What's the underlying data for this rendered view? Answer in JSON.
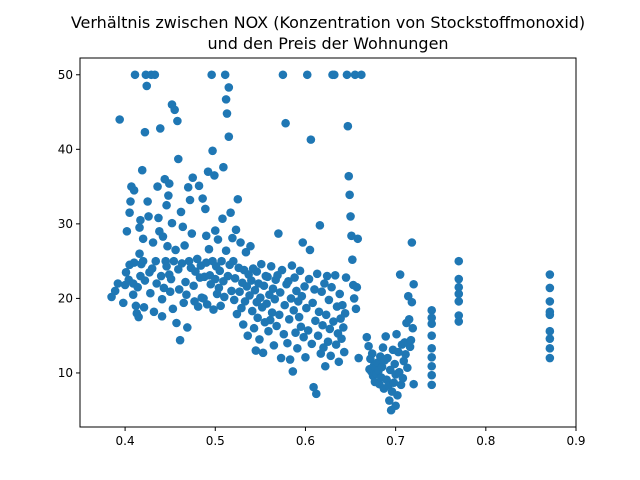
{
  "chart_data": {
    "type": "scatter",
    "title_lines": [
      "Verhältnis zwischen NOX (Konzentration von Stockstoffmonoxid)",
      "und den Preis der Wohnungen"
    ],
    "xlabel": "",
    "ylabel": "",
    "xlim": [
      0.35,
      0.9
    ],
    "ylim": [
      2.75,
      52.25
    ],
    "x_ticks": [
      0.4,
      0.5,
      0.6,
      0.7,
      0.8,
      0.9
    ],
    "x_tick_labels": [
      "0.4",
      "0.5",
      "0.6",
      "0.7",
      "0.8",
      "0.9"
    ],
    "y_ticks": [
      10,
      20,
      30,
      40,
      50
    ],
    "y_tick_labels": [
      "10",
      "20",
      "30",
      "40",
      "50"
    ],
    "grid": false,
    "marker_color": "#1f77b4",
    "points": [
      [
        0.385,
        20.2
      ],
      [
        0.389,
        21.0
      ],
      [
        0.392,
        22.0
      ],
      [
        0.394,
        44.0
      ],
      [
        0.398,
        19.4
      ],
      [
        0.4,
        21.8
      ],
      [
        0.401,
        23.5
      ],
      [
        0.402,
        29.0
      ],
      [
        0.404,
        22.5
      ],
      [
        0.405,
        31.5
      ],
      [
        0.405,
        24.5
      ],
      [
        0.406,
        33.0
      ],
      [
        0.407,
        35.0
      ],
      [
        0.409,
        22.0
      ],
      [
        0.409,
        20.5
      ],
      [
        0.41,
        34.5
      ],
      [
        0.41,
        24.8
      ],
      [
        0.411,
        50.0
      ],
      [
        0.412,
        19.0
      ],
      [
        0.413,
        18.0
      ],
      [
        0.414,
        21.5
      ],
      [
        0.415,
        17.5
      ],
      [
        0.416,
        29.5
      ],
      [
        0.416,
        26.0
      ],
      [
        0.417,
        30.5
      ],
      [
        0.417,
        23.0
      ],
      [
        0.418,
        24.6
      ],
      [
        0.419,
        37.2
      ],
      [
        0.42,
        28.0
      ],
      [
        0.42,
        25.0
      ],
      [
        0.421,
        18.8
      ],
      [
        0.422,
        42.3
      ],
      [
        0.422,
        22.4
      ],
      [
        0.423,
        50.0
      ],
      [
        0.424,
        48.5
      ],
      [
        0.425,
        33.0
      ],
      [
        0.426,
        31.0
      ],
      [
        0.427,
        23.5
      ],
      [
        0.428,
        20.7
      ],
      [
        0.429,
        50.0
      ],
      [
        0.43,
        24.0
      ],
      [
        0.431,
        27.5
      ],
      [
        0.432,
        18.2
      ],
      [
        0.433,
        50.0
      ],
      [
        0.434,
        25.0
      ],
      [
        0.435,
        22.0
      ],
      [
        0.436,
        35.0
      ],
      [
        0.437,
        30.8
      ],
      [
        0.438,
        29.0
      ],
      [
        0.439,
        42.8
      ],
      [
        0.44,
        23.0
      ],
      [
        0.441,
        19.9
      ],
      [
        0.441,
        17.6
      ],
      [
        0.442,
        28.3
      ],
      [
        0.443,
        21.4
      ],
      [
        0.444,
        36.0
      ],
      [
        0.445,
        25.0
      ],
      [
        0.446,
        32.5
      ],
      [
        0.446,
        24.3
      ],
      [
        0.447,
        27.0
      ],
      [
        0.448,
        33.8
      ],
      [
        0.449,
        35.4
      ],
      [
        0.449,
        23.2
      ],
      [
        0.45,
        20.9
      ],
      [
        0.451,
        22.6
      ],
      [
        0.452,
        46.0
      ],
      [
        0.452,
        30.1
      ],
      [
        0.453,
        18.6
      ],
      [
        0.454,
        25.0
      ],
      [
        0.455,
        45.3
      ],
      [
        0.456,
        26.5
      ],
      [
        0.457,
        16.7
      ],
      [
        0.458,
        43.8
      ],
      [
        0.459,
        38.7
      ],
      [
        0.459,
        23.9
      ],
      [
        0.46,
        21.2
      ],
      [
        0.461,
        14.4
      ],
      [
        0.462,
        31.6
      ],
      [
        0.463,
        24.7
      ],
      [
        0.464,
        29.6
      ],
      [
        0.465,
        19.4
      ],
      [
        0.466,
        27.1
      ],
      [
        0.467,
        22.2
      ],
      [
        0.468,
        20.5
      ],
      [
        0.469,
        16.1
      ],
      [
        0.47,
        34.9
      ],
      [
        0.471,
        25.0
      ],
      [
        0.472,
        33.2
      ],
      [
        0.473,
        24.1
      ],
      [
        0.474,
        28.7
      ],
      [
        0.475,
        36.2
      ],
      [
        0.476,
        21.7
      ],
      [
        0.477,
        19.6
      ],
      [
        0.478,
        23.6
      ],
      [
        0.48,
        25.3
      ],
      [
        0.481,
        18.9
      ],
      [
        0.482,
        35.1
      ],
      [
        0.483,
        22.8
      ],
      [
        0.484,
        24.4
      ],
      [
        0.485,
        20.1
      ],
      [
        0.486,
        33.4
      ],
      [
        0.487,
        20.0
      ],
      [
        0.488,
        22.9
      ],
      [
        0.489,
        32.0
      ],
      [
        0.49,
        24.8
      ],
      [
        0.49,
        28.4
      ],
      [
        0.491,
        19.2
      ],
      [
        0.492,
        37.0
      ],
      [
        0.493,
        26.6
      ],
      [
        0.494,
        23.1
      ],
      [
        0.495,
        21.9
      ],
      [
        0.496,
        50.0
      ],
      [
        0.497,
        39.8
      ],
      [
        0.497,
        25.0
      ],
      [
        0.498,
        18.5
      ],
      [
        0.499,
        36.5
      ],
      [
        0.5,
        22.6
      ],
      [
        0.5,
        29.1
      ],
      [
        0.501,
        24.3
      ],
      [
        0.502,
        20.6
      ],
      [
        0.503,
        27.9
      ],
      [
        0.504,
        21.4
      ],
      [
        0.505,
        23.7
      ],
      [
        0.506,
        19.0
      ],
      [
        0.507,
        25.0
      ],
      [
        0.508,
        30.7
      ],
      [
        0.509,
        37.6
      ],
      [
        0.509,
        22.3
      ],
      [
        0.51,
        20.2
      ],
      [
        0.511,
        50.0
      ],
      [
        0.512,
        46.7
      ],
      [
        0.512,
        26.4
      ],
      [
        0.513,
        44.8
      ],
      [
        0.514,
        23.0
      ],
      [
        0.515,
        41.7
      ],
      [
        0.515,
        48.3
      ],
      [
        0.516,
        24.5
      ],
      [
        0.517,
        31.5
      ],
      [
        0.518,
        21.0
      ],
      [
        0.519,
        28.1
      ],
      [
        0.52,
        25.0
      ],
      [
        0.521,
        19.8
      ],
      [
        0.522,
        22.7
      ],
      [
        0.523,
        29.2
      ],
      [
        0.524,
        17.9
      ],
      [
        0.525,
        33.3
      ],
      [
        0.526,
        24.1
      ],
      [
        0.527,
        20.9
      ],
      [
        0.528,
        27.5
      ],
      [
        0.529,
        18.7
      ],
      [
        0.53,
        22.1
      ],
      [
        0.531,
        16.5
      ],
      [
        0.532,
        23.8
      ],
      [
        0.533,
        19.6
      ],
      [
        0.534,
        26.2
      ],
      [
        0.535,
        21.6
      ],
      [
        0.536,
        15.0
      ],
      [
        0.537,
        23.2
      ],
      [
        0.538,
        20.4
      ],
      [
        0.539,
        27.0
      ],
      [
        0.54,
        22.4
      ],
      [
        0.541,
        18.3
      ],
      [
        0.542,
        24.0
      ],
      [
        0.543,
        16.0
      ],
      [
        0.544,
        21.1
      ],
      [
        0.545,
        13.0
      ],
      [
        0.546,
        19.5
      ],
      [
        0.546,
        23.6
      ],
      [
        0.547,
        17.4
      ],
      [
        0.548,
        22.0
      ],
      [
        0.549,
        14.5
      ],
      [
        0.55,
        20.1
      ],
      [
        0.551,
        24.6
      ],
      [
        0.552,
        18.8
      ],
      [
        0.553,
        12.7
      ],
      [
        0.554,
        21.7
      ],
      [
        0.555,
        16.8
      ],
      [
        0.556,
        23.0
      ],
      [
        0.557,
        19.3
      ],
      [
        0.558,
        22.9
      ],
      [
        0.559,
        15.6
      ],
      [
        0.56,
        20.5
      ],
      [
        0.561,
        17.1
      ],
      [
        0.562,
        24.3
      ],
      [
        0.563,
        18.1
      ],
      [
        0.564,
        21.3
      ],
      [
        0.565,
        13.7
      ],
      [
        0.566,
        19.9
      ],
      [
        0.567,
        22.5
      ],
      [
        0.568,
        16.3
      ],
      [
        0.569,
        23.1
      ],
      [
        0.57,
        28.7
      ],
      [
        0.571,
        17.8
      ],
      [
        0.572,
        20.8
      ],
      [
        0.573,
        12.0
      ],
      [
        0.574,
        23.8
      ],
      [
        0.575,
        50.0
      ],
      [
        0.576,
        15.2
      ],
      [
        0.577,
        19.1
      ],
      [
        0.578,
        43.5
      ],
      [
        0.579,
        21.9
      ],
      [
        0.58,
        14.0
      ],
      [
        0.581,
        22.3
      ],
      [
        0.582,
        17.2
      ],
      [
        0.583,
        11.8
      ],
      [
        0.584,
        20.0
      ],
      [
        0.585,
        24.4
      ],
      [
        0.586,
        10.2
      ],
      [
        0.587,
        18.4
      ],
      [
        0.588,
        22.8
      ],
      [
        0.589,
        15.4
      ],
      [
        0.59,
        21.0
      ],
      [
        0.591,
        13.3
      ],
      [
        0.592,
        19.6
      ],
      [
        0.593,
        17.5
      ],
      [
        0.594,
        23.7
      ],
      [
        0.595,
        16.2
      ],
      [
        0.596,
        20.3
      ],
      [
        0.597,
        27.5
      ],
      [
        0.598,
        14.8
      ],
      [
        0.599,
        21.6
      ],
      [
        0.6,
        12.1
      ],
      [
        0.601,
        18.7
      ],
      [
        0.602,
        50.0
      ],
      [
        0.603,
        15.7
      ],
      [
        0.604,
        22.6
      ],
      [
        0.605,
        26.5
      ],
      [
        0.606,
        41.3
      ],
      [
        0.607,
        13.9
      ],
      [
        0.608,
        19.4
      ],
      [
        0.609,
        8.1
      ],
      [
        0.61,
        21.2
      ],
      [
        0.611,
        17.0
      ],
      [
        0.612,
        7.2
      ],
      [
        0.613,
        23.3
      ],
      [
        0.614,
        15.0
      ],
      [
        0.615,
        18.2
      ],
      [
        0.616,
        29.8
      ],
      [
        0.617,
        12.6
      ],
      [
        0.618,
        20.9
      ],
      [
        0.619,
        16.4
      ],
      [
        0.62,
        13.4
      ],
      [
        0.621,
        22.0
      ],
      [
        0.622,
        10.9
      ],
      [
        0.623,
        17.8
      ],
      [
        0.624,
        23.0
      ],
      [
        0.625,
        14.2
      ],
      [
        0.626,
        19.8
      ],
      [
        0.627,
        15.9
      ],
      [
        0.628,
        12.3
      ],
      [
        0.629,
        21.5
      ],
      [
        0.63,
        50.0
      ],
      [
        0.631,
        16.9
      ],
      [
        0.632,
        50.0
      ],
      [
        0.633,
        23.1
      ],
      [
        0.634,
        13.8
      ],
      [
        0.635,
        18.9
      ],
      [
        0.636,
        15.3
      ],
      [
        0.637,
        11.5
      ],
      [
        0.638,
        20.6
      ],
      [
        0.639,
        17.3
      ],
      [
        0.64,
        14.6
      ],
      [
        0.641,
        19.1
      ],
      [
        0.642,
        16.1
      ],
      [
        0.643,
        12.8
      ],
      [
        0.644,
        18.0
      ],
      [
        0.645,
        22.8
      ],
      [
        0.646,
        50.0
      ],
      [
        0.647,
        43.1
      ],
      [
        0.648,
        36.4
      ],
      [
        0.649,
        33.9
      ],
      [
        0.65,
        31.0
      ],
      [
        0.651,
        28.4
      ],
      [
        0.652,
        25.2
      ],
      [
        0.653,
        21.8
      ],
      [
        0.654,
        20.0
      ],
      [
        0.655,
        50.0
      ],
      [
        0.656,
        18.6
      ],
      [
        0.657,
        21.5
      ],
      [
        0.658,
        28.0
      ],
      [
        0.659,
        12.0
      ],
      [
        0.662,
        50.0
      ],
      [
        0.668,
        14.8
      ],
      [
        0.67,
        13.6
      ],
      [
        0.671,
        10.5
      ],
      [
        0.672,
        11.9
      ],
      [
        0.673,
        10.2
      ],
      [
        0.674,
        12.6
      ],
      [
        0.675,
        9.6
      ],
      [
        0.676,
        11.0
      ],
      [
        0.677,
        8.8
      ],
      [
        0.678,
        10.6
      ],
      [
        0.679,
        9.9
      ],
      [
        0.68,
        11.4
      ],
      [
        0.681,
        10.3
      ],
      [
        0.682,
        8.5
      ],
      [
        0.683,
        12.2
      ],
      [
        0.684,
        9.4
      ],
      [
        0.685,
        10.8
      ],
      [
        0.686,
        13.4
      ],
      [
        0.687,
        7.9
      ],
      [
        0.688,
        11.7
      ],
      [
        0.689,
        14.9
      ],
      [
        0.69,
        9.1
      ],
      [
        0.691,
        12.0
      ],
      [
        0.692,
        8.3
      ],
      [
        0.693,
        6.3
      ],
      [
        0.694,
        10.4
      ],
      [
        0.695,
        5.0
      ],
      [
        0.696,
        7.5
      ],
      [
        0.697,
        13.1
      ],
      [
        0.698,
        8.7
      ],
      [
        0.699,
        11.2
      ],
      [
        0.7,
        9.8
      ],
      [
        0.7,
        5.6
      ],
      [
        0.701,
        15.2
      ],
      [
        0.702,
        7.0
      ],
      [
        0.703,
        12.8
      ],
      [
        0.704,
        10.1
      ],
      [
        0.705,
        23.2
      ],
      [
        0.706,
        8.4
      ],
      [
        0.707,
        13.8
      ],
      [
        0.708,
        9.3
      ],
      [
        0.709,
        11.6
      ],
      [
        0.71,
        14.1
      ],
      [
        0.711,
        12.5
      ],
      [
        0.712,
        16.7
      ],
      [
        0.713,
        10.7
      ],
      [
        0.714,
        20.3
      ],
      [
        0.715,
        17.2
      ],
      [
        0.716,
        13.5
      ],
      [
        0.717,
        14.4
      ],
      [
        0.718,
        19.5
      ],
      [
        0.718,
        27.5
      ],
      [
        0.719,
        16.0
      ],
      [
        0.72,
        8.5
      ],
      [
        0.72,
        21.9
      ],
      [
        0.74,
        18.4
      ],
      [
        0.74,
        16.6
      ],
      [
        0.74,
        15.0
      ],
      [
        0.74,
        13.3
      ],
      [
        0.74,
        12.1
      ],
      [
        0.74,
        10.9
      ],
      [
        0.74,
        9.7
      ],
      [
        0.74,
        8.4
      ],
      [
        0.74,
        17.4
      ],
      [
        0.77,
        25.0
      ],
      [
        0.77,
        22.6
      ],
      [
        0.77,
        21.5
      ],
      [
        0.77,
        20.6
      ],
      [
        0.77,
        19.6
      ],
      [
        0.77,
        17.7
      ],
      [
        0.77,
        16.9
      ],
      [
        0.871,
        23.2
      ],
      [
        0.871,
        21.4
      ],
      [
        0.871,
        19.6
      ],
      [
        0.871,
        17.8
      ],
      [
        0.871,
        15.6
      ],
      [
        0.871,
        14.6
      ],
      [
        0.871,
        13.3
      ],
      [
        0.871,
        12.0
      ],
      [
        0.871,
        18.2
      ]
    ]
  }
}
